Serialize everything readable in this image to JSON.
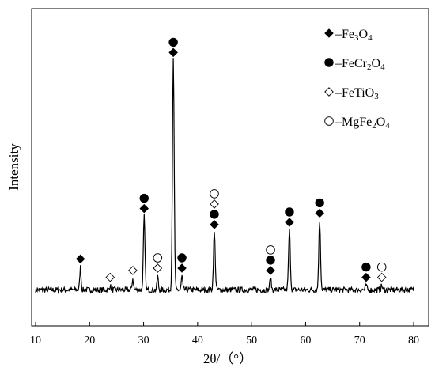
{
  "chart_data": {
    "type": "line",
    "title": "",
    "xlabel": "2θ/（°）",
    "ylabel": "Intensity",
    "xlim": [
      10,
      80
    ],
    "x_ticks": [
      10,
      20,
      30,
      40,
      50,
      60,
      70,
      80
    ],
    "y_ticks_shown": false,
    "grid": false,
    "legend_position": "top-right",
    "legend": [
      {
        "marker": "filled-diamond",
        "prefix": "–Fe",
        "parts": [
          [
            "Fe",
            ""
          ],
          [
            "3",
            "sub"
          ],
          [
            "O",
            ""
          ],
          [
            "4",
            "sub"
          ]
        ],
        "label": "Fe3O4"
      },
      {
        "marker": "filled-circle",
        "parts": [
          [
            "FeCr",
            ""
          ],
          [
            "2",
            "sub"
          ],
          [
            "O",
            ""
          ],
          [
            "4",
            "sub"
          ]
        ],
        "label": "FeCr2O4"
      },
      {
        "marker": "open-diamond",
        "parts": [
          [
            "FeTiO",
            ""
          ],
          [
            "3",
            "sub"
          ]
        ],
        "label": "FeTiO3"
      },
      {
        "marker": "open-circle",
        "parts": [
          [
            "MgFe",
            ""
          ],
          [
            "2",
            "sub"
          ],
          [
            "O",
            ""
          ],
          [
            "4",
            "sub"
          ]
        ],
        "label": "MgFe2O4"
      }
    ],
    "baseline": 0.04,
    "peaks": [
      {
        "x": 18.3,
        "h": 0.1,
        "w": 0.12,
        "markers": [
          "filled-diamond"
        ]
      },
      {
        "x": 23.8,
        "h": 0.02,
        "w": 0.12,
        "markers": [
          "open-diamond"
        ]
      },
      {
        "x": 28.0,
        "h": 0.05,
        "w": 0.12,
        "markers": [
          "open-diamond"
        ]
      },
      {
        "x": 30.1,
        "h": 0.32,
        "w": 0.15,
        "markers": [
          "filled-diamond",
          "filled-circle"
        ]
      },
      {
        "x": 32.6,
        "h": 0.06,
        "w": 0.12,
        "markers": [
          "open-diamond",
          "open-circle"
        ]
      },
      {
        "x": 35.5,
        "h": 1.0,
        "w": 0.16,
        "markers": [
          "filled-diamond",
          "filled-circle"
        ]
      },
      {
        "x": 37.1,
        "h": 0.06,
        "w": 0.12,
        "markers": [
          "filled-diamond",
          "filled-circle"
        ]
      },
      {
        "x": 43.1,
        "h": 0.25,
        "w": 0.16,
        "markers": [
          "filled-diamond",
          "filled-circle",
          "open-diamond",
          "open-circle"
        ]
      },
      {
        "x": 53.5,
        "h": 0.05,
        "w": 0.14,
        "markers": [
          "filled-diamond",
          "filled-circle",
          "open-circle"
        ]
      },
      {
        "x": 57.0,
        "h": 0.26,
        "w": 0.16,
        "markers": [
          "filled-diamond",
          "filled-circle"
        ]
      },
      {
        "x": 62.6,
        "h": 0.3,
        "w": 0.16,
        "markers": [
          "filled-diamond",
          "filled-circle"
        ]
      },
      {
        "x": 71.2,
        "h": 0.02,
        "w": 0.12,
        "markers": [
          "filled-diamond",
          "filled-circle"
        ]
      },
      {
        "x": 74.1,
        "h": 0.02,
        "w": 0.12,
        "markers": [
          "open-diamond",
          "open-circle"
        ]
      }
    ]
  }
}
